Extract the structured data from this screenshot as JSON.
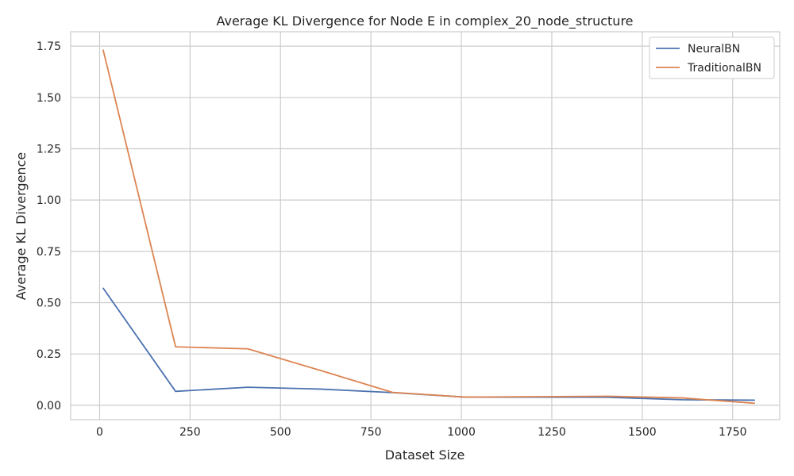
{
  "chart_data": {
    "type": "line",
    "title": "Average KL Divergence for Node E in complex_20_node_structure",
    "xlabel": "Dataset Size",
    "ylabel": "Average KL Divergence",
    "xlim": [
      -80,
      1880
    ],
    "ylim": [
      -0.07,
      1.82
    ],
    "xticks": [
      0,
      250,
      500,
      750,
      1000,
      1250,
      1500,
      1750
    ],
    "xtick_labels": [
      "0",
      "250",
      "500",
      "750",
      "1000",
      "1250",
      "1500",
      "1750"
    ],
    "yticks": [
      0.0,
      0.25,
      0.5,
      0.75,
      1.0,
      1.25,
      1.5,
      1.75
    ],
    "ytick_labels": [
      "0.00",
      "0.25",
      "0.50",
      "0.75",
      "1.00",
      "1.25",
      "1.50",
      "1.75"
    ],
    "grid": true,
    "legend_position": "top-right",
    "series": [
      {
        "name": "NeuralBN",
        "color": "#4c72b0",
        "x": [
          10,
          210,
          410,
          610,
          810,
          1010,
          1210,
          1410,
          1610,
          1810
        ],
        "y": [
          0.57,
          0.068,
          0.088,
          0.079,
          0.062,
          0.04,
          0.04,
          0.039,
          0.027,
          0.025
        ]
      },
      {
        "name": "TraditionalBN",
        "color": "#dd8452",
        "x": [
          10,
          210,
          410,
          610,
          810,
          1010,
          1210,
          1410,
          1610,
          1810
        ],
        "y": [
          1.73,
          0.285,
          0.275,
          0.17,
          0.063,
          0.04,
          0.042,
          0.044,
          0.036,
          0.01
        ]
      }
    ]
  }
}
